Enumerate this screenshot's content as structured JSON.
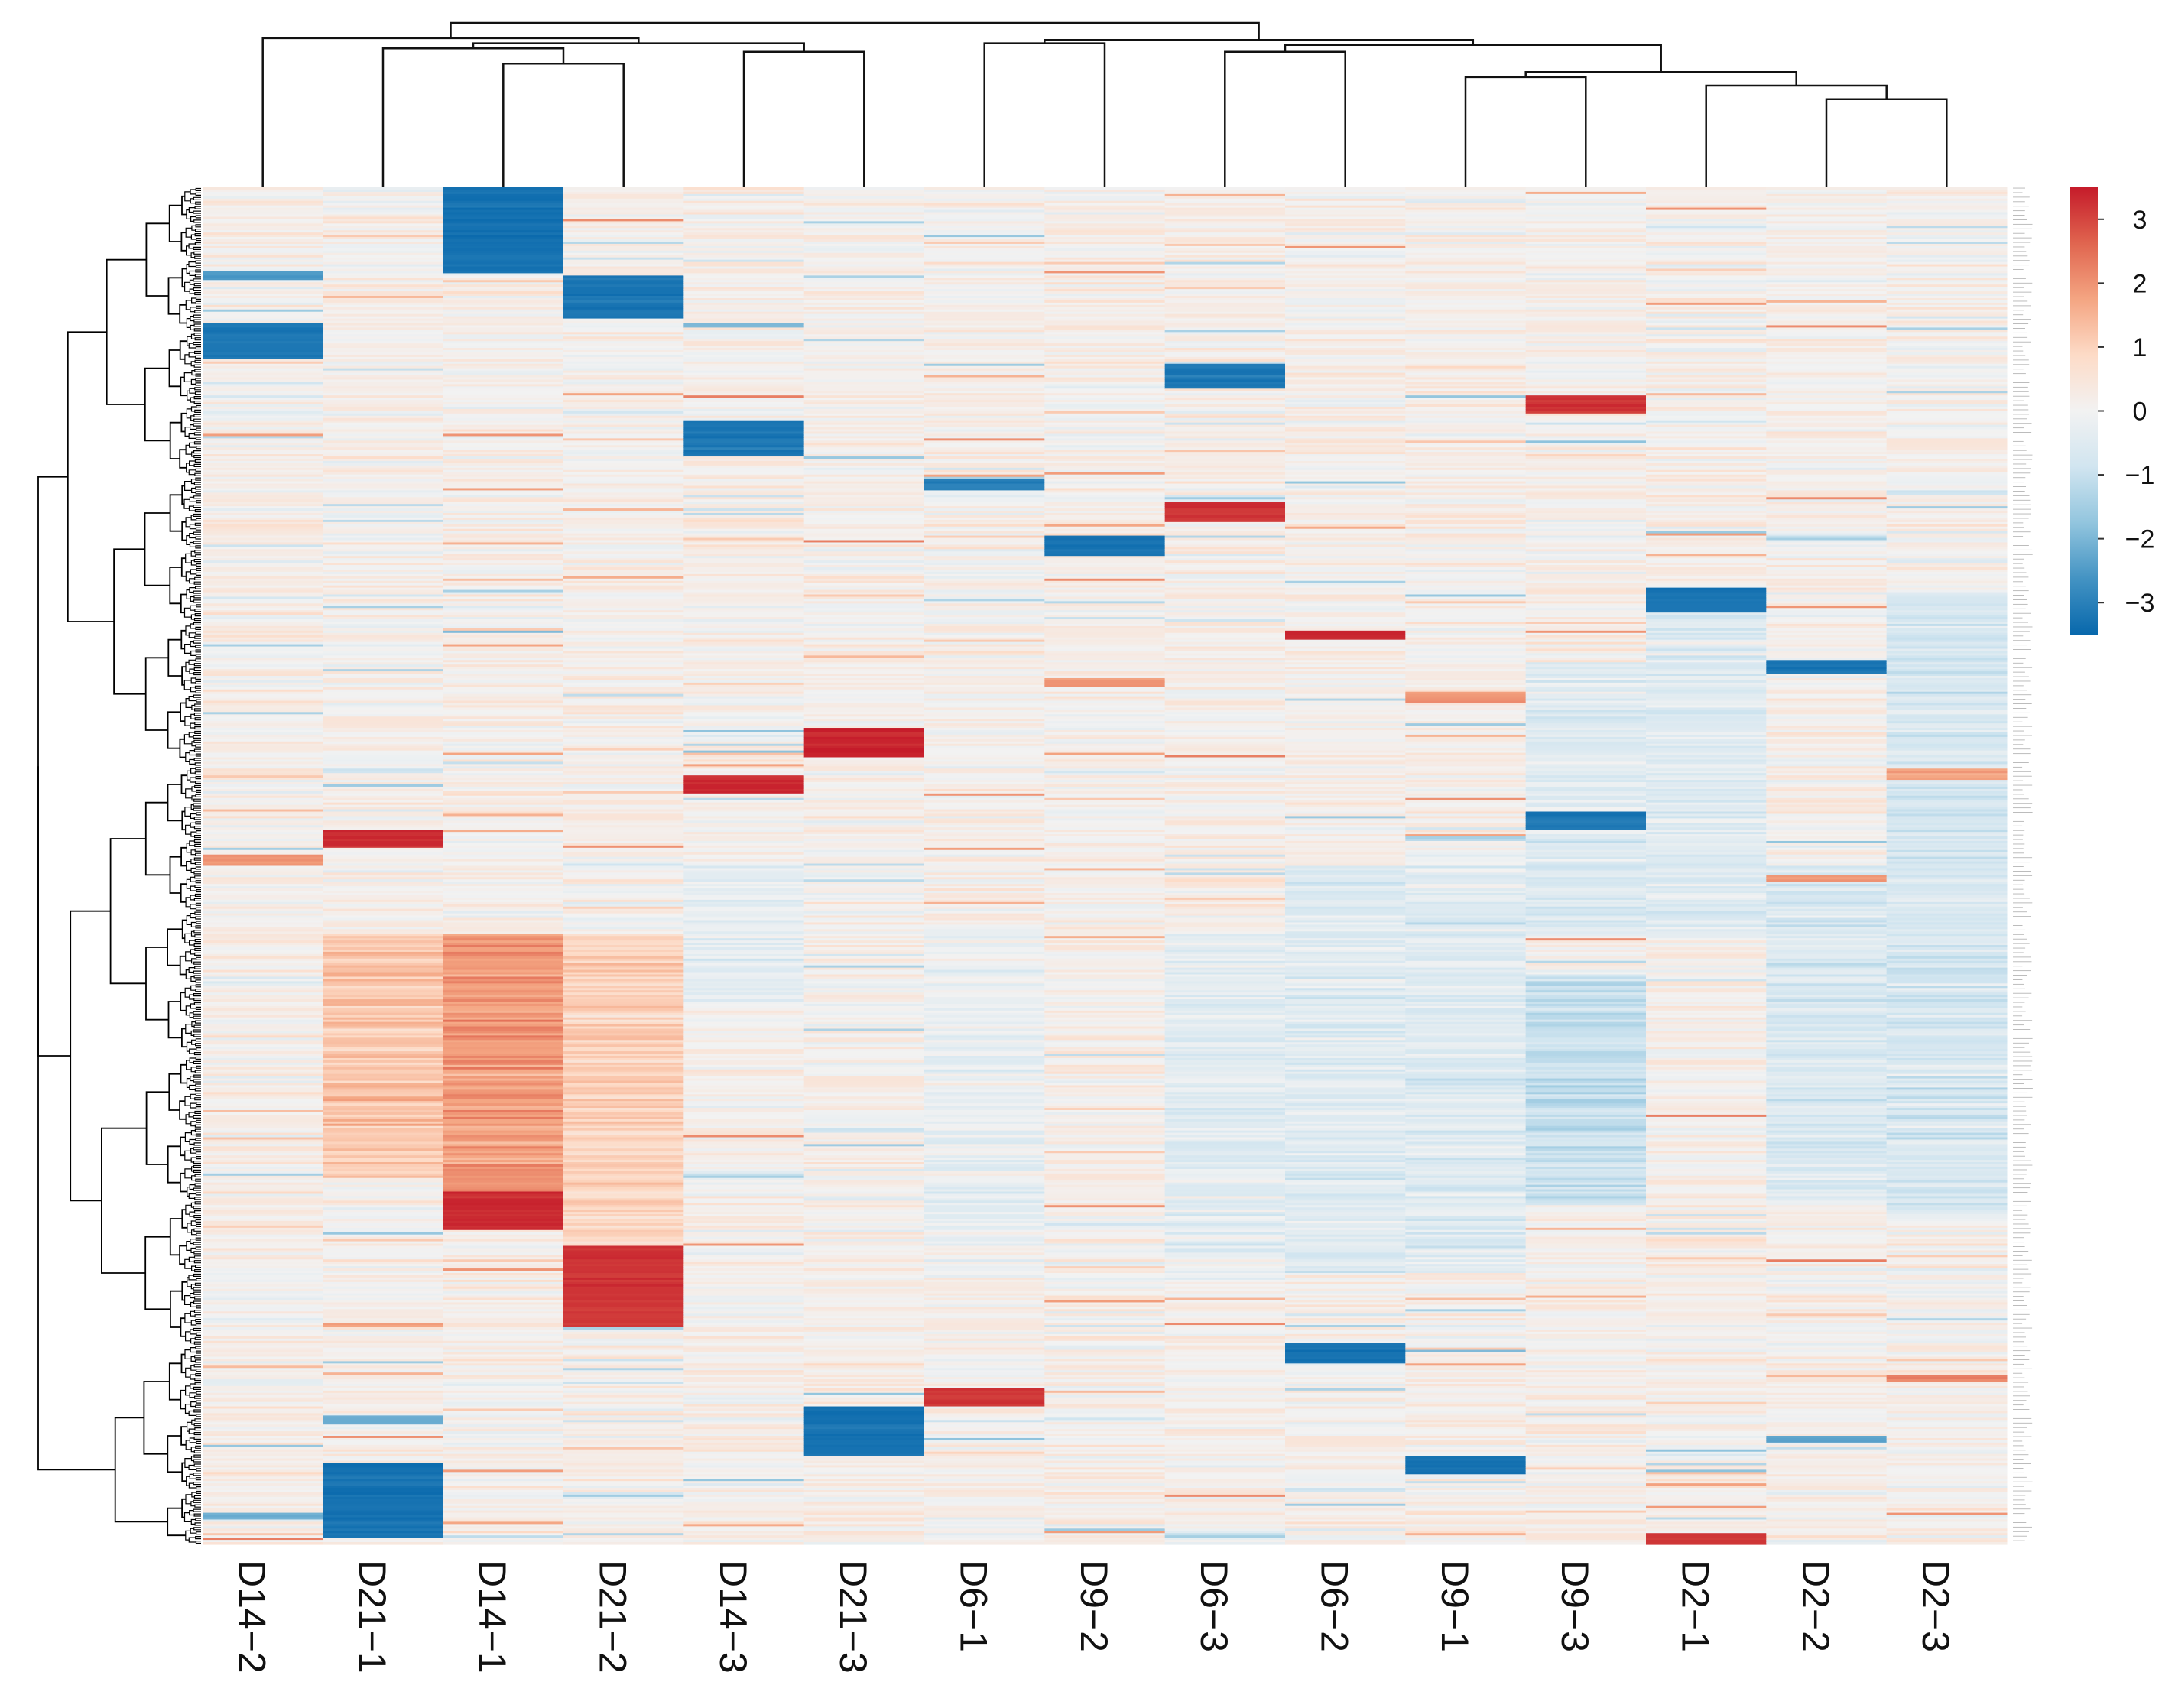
{
  "chart_data": {
    "type": "heatmap",
    "title": "",
    "xlabel": "",
    "ylabel": "",
    "columns": [
      "D14−2",
      "D21−1",
      "D14−1",
      "D21−2",
      "D14−3",
      "D21−3",
      "D6−1",
      "D9−2",
      "D6−3",
      "D6−2",
      "D9−1",
      "D9−3",
      "D2−1",
      "D2−2",
      "D2−3"
    ],
    "n_rows": 600,
    "color_scale": {
      "min": -3.5,
      "max": 3.5,
      "colors": [
        "#0868ac",
        "#4393c3",
        "#92c5de",
        "#d1e5f0",
        "#f2f2f2",
        "#fddbc7",
        "#f4a582",
        "#e0654f",
        "#c51b2a"
      ]
    },
    "legend": {
      "ticks": [
        3,
        2,
        1,
        0,
        -1,
        -2,
        -3
      ],
      "tick_labels": [
        "3",
        "2",
        "1",
        "0",
        "−1",
        "−2",
        "−3"
      ],
      "placement": "top-right"
    },
    "column_dendrogram": {
      "merges": [
        [
          13,
          14,
          0.52
        ],
        [
          12,
          13,
          0.6
        ],
        [
          10,
          11,
          0.65
        ],
        [
          10,
          12,
          0.68
        ],
        [
          8,
          9,
          0.8
        ],
        [
          8,
          10,
          0.84
        ],
        [
          6,
          7,
          0.85
        ],
        [
          6,
          8,
          0.87
        ],
        [
          2,
          3,
          0.73
        ],
        [
          4,
          5,
          0.8
        ],
        [
          1,
          2,
          0.82
        ],
        [
          1,
          4,
          0.85
        ],
        [
          0,
          1,
          0.88
        ],
        [
          0,
          6,
          0.97
        ]
      ]
    },
    "blocks": [
      {
        "col": 0,
        "r0": 0.1,
        "r1": 0.127,
        "v": -3.2
      },
      {
        "col": 0,
        "r0": 0.062,
        "r1": 0.068,
        "v": -2.5
      },
      {
        "col": 0,
        "r0": 0.492,
        "r1": 0.5,
        "v": 2.0
      },
      {
        "col": 0,
        "r0": 0.977,
        "r1": 0.982,
        "v": -2.0
      },
      {
        "col": 1,
        "r0": 0.473,
        "r1": 0.487,
        "v": 3.3
      },
      {
        "col": 1,
        "r0": 0.94,
        "r1": 0.995,
        "v": -3.3
      },
      {
        "col": 1,
        "r0": 0.905,
        "r1": 0.911,
        "v": -2.2
      },
      {
        "col": 1,
        "r0": 0.836,
        "r1": 0.84,
        "v": 1.8
      },
      {
        "col": 2,
        "r0": 0.0,
        "r1": 0.063,
        "v": -3.3
      },
      {
        "col": 2,
        "r0": 0.74,
        "r1": 0.768,
        "v": 3.3
      },
      {
        "col": 3,
        "r0": 0.065,
        "r1": 0.097,
        "v": -3.2
      },
      {
        "col": 3,
        "r0": 0.78,
        "r1": 0.84,
        "v": 3.2
      },
      {
        "col": 4,
        "r0": 0.172,
        "r1": 0.198,
        "v": -3.2
      },
      {
        "col": 4,
        "r0": 0.433,
        "r1": 0.446,
        "v": 3.3
      },
      {
        "col": 4,
        "r0": 0.1,
        "r1": 0.104,
        "v": -2.0
      },
      {
        "col": 5,
        "r0": 0.398,
        "r1": 0.42,
        "v": 3.4
      },
      {
        "col": 5,
        "r0": 0.898,
        "r1": 0.935,
        "v": -3.3
      },
      {
        "col": 6,
        "r0": 0.215,
        "r1": 0.224,
        "v": -3.0
      },
      {
        "col": 6,
        "r0": 0.885,
        "r1": 0.899,
        "v": 3.2
      },
      {
        "col": 7,
        "r0": 0.257,
        "r1": 0.272,
        "v": -3.2
      },
      {
        "col": 7,
        "r0": 0.362,
        "r1": 0.368,
        "v": 2.0
      },
      {
        "col": 8,
        "r0": 0.13,
        "r1": 0.148,
        "v": -3.2
      },
      {
        "col": 8,
        "r0": 0.232,
        "r1": 0.246,
        "v": 3.2
      },
      {
        "col": 9,
        "r0": 0.326,
        "r1": 0.333,
        "v": 3.3
      },
      {
        "col": 9,
        "r0": 0.852,
        "r1": 0.866,
        "v": -3.3
      },
      {
        "col": 10,
        "r0": 0.935,
        "r1": 0.948,
        "v": -3.3
      },
      {
        "col": 10,
        "r0": 0.372,
        "r1": 0.38,
        "v": 2.0
      },
      {
        "col": 11,
        "r0": 0.153,
        "r1": 0.167,
        "v": 3.2
      },
      {
        "col": 11,
        "r0": 0.46,
        "r1": 0.474,
        "v": -3.2
      },
      {
        "col": 12,
        "r0": 0.295,
        "r1": 0.314,
        "v": -3.3
      },
      {
        "col": 12,
        "r0": 0.992,
        "r1": 1.0,
        "v": 3.2
      },
      {
        "col": 13,
        "r0": 0.348,
        "r1": 0.358,
        "v": -3.2
      },
      {
        "col": 13,
        "r0": 0.507,
        "r1": 0.512,
        "v": 2.0
      },
      {
        "col": 13,
        "r0": 0.92,
        "r1": 0.925,
        "v": -2.2
      },
      {
        "col": 14,
        "r0": 0.428,
        "r1": 0.436,
        "v": 1.8
      },
      {
        "col": 14,
        "r0": 0.875,
        "r1": 0.88,
        "v": 2.2
      }
    ],
    "regions": [
      {
        "col": 2,
        "r0": 0.55,
        "r1": 0.76,
        "v": 1.9
      },
      {
        "col": 1,
        "r0": 0.55,
        "r1": 0.73,
        "v": 1.2
      },
      {
        "col": 3,
        "r0": 0.55,
        "r1": 0.78,
        "v": 1.0
      },
      {
        "col": 11,
        "r0": 0.58,
        "r1": 0.75,
        "v": -1.0
      },
      {
        "col": 11,
        "r0": 0.35,
        "r1": 0.55,
        "v": -0.5
      },
      {
        "col": 12,
        "r0": 0.3,
        "r1": 0.55,
        "v": -0.5
      },
      {
        "col": 13,
        "r0": 0.5,
        "r1": 0.75,
        "v": -0.6
      },
      {
        "col": 14,
        "r0": 0.3,
        "r1": 0.76,
        "v": -0.7
      },
      {
        "col": 9,
        "r0": 0.5,
        "r1": 0.8,
        "v": -0.5
      },
      {
        "col": 10,
        "r0": 0.5,
        "r1": 0.8,
        "v": -0.5
      },
      {
        "col": 8,
        "r0": 0.55,
        "r1": 0.8,
        "v": -0.4
      },
      {
        "col": 6,
        "r0": 0.55,
        "r1": 0.8,
        "v": -0.2
      },
      {
        "col": 4,
        "r0": 0.5,
        "r1": 0.6,
        "v": -0.3
      }
    ]
  }
}
